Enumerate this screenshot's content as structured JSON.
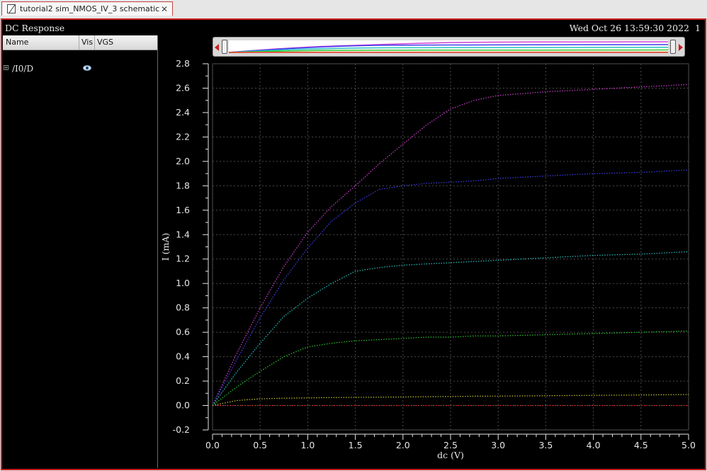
{
  "tab": {
    "title": "tutorial2 sim_NMOS_IV_3 schematic",
    "close": "✕"
  },
  "window": {
    "title": "DC Response",
    "date": "Wed Oct 26 13:59:30 2022",
    "number": "1"
  },
  "signal_panel": {
    "columns": [
      "Name",
      "Vis",
      "VGS"
    ],
    "signal": {
      "expander": "+",
      "name": "/I0/D",
      "visible_icon": "eye-icon"
    }
  },
  "colors": {
    "background": "#000000",
    "grid": "#4a4a4a",
    "axis_text": "#e6e6e6",
    "window_border": "#cc2020"
  },
  "chart_data": {
    "type": "line",
    "xlabel": "dc (V)",
    "ylabel": "I (mA)",
    "xlim": [
      0,
      5
    ],
    "ylim": [
      -0.2,
      2.8
    ],
    "xticks": [
      0.0,
      0.5,
      1.0,
      1.5,
      2.0,
      2.5,
      3.0,
      3.5,
      4.0,
      4.5,
      5.0
    ],
    "yticks": [
      -0.2,
      0.0,
      0.2,
      0.4,
      0.6,
      0.8,
      1.0,
      1.2,
      1.4,
      1.6,
      1.8,
      2.0,
      2.2,
      2.4,
      2.6,
      2.8
    ],
    "grid": true,
    "line_style": "dotted",
    "x": [
      0,
      0.25,
      0.5,
      0.75,
      1.0,
      1.25,
      1.5,
      1.75,
      2.0,
      2.25,
      2.5,
      2.75,
      3.0,
      3.5,
      4.0,
      4.5,
      5.0
    ],
    "series": [
      {
        "color": "#d33fd3",
        "values": [
          0,
          0.42,
          0.8,
          1.14,
          1.42,
          1.63,
          1.8,
          1.98,
          2.14,
          2.3,
          2.43,
          2.5,
          2.54,
          2.57,
          2.59,
          2.61,
          2.63
        ]
      },
      {
        "color": "#3f3ff0",
        "values": [
          0,
          0.37,
          0.72,
          1.03,
          1.29,
          1.51,
          1.66,
          1.77,
          1.8,
          1.82,
          1.83,
          1.84,
          1.86,
          1.88,
          1.9,
          1.91,
          1.93
        ]
      },
      {
        "color": "#29c3c3",
        "values": [
          0,
          0.27,
          0.51,
          0.73,
          0.88,
          1.0,
          1.1,
          1.13,
          1.15,
          1.16,
          1.17,
          1.18,
          1.19,
          1.21,
          1.23,
          1.24,
          1.26
        ]
      },
      {
        "color": "#2ec82e",
        "values": [
          0,
          0.15,
          0.28,
          0.4,
          0.48,
          0.51,
          0.53,
          0.54,
          0.55,
          0.56,
          0.56,
          0.57,
          0.57,
          0.58,
          0.59,
          0.6,
          0.61
        ]
      },
      {
        "color": "#c8c832",
        "values": [
          0,
          0.04,
          0.055,
          0.06,
          0.062,
          0.065,
          0.067,
          0.068,
          0.07,
          0.072,
          0.074,
          0.076,
          0.077,
          0.08,
          0.083,
          0.086,
          0.09
        ]
      },
      {
        "color": "#e03030",
        "values": [
          0,
          0,
          0,
          0,
          0,
          0,
          0,
          0,
          0,
          0,
          0,
          0,
          0,
          0,
          0,
          0,
          0
        ]
      }
    ]
  }
}
